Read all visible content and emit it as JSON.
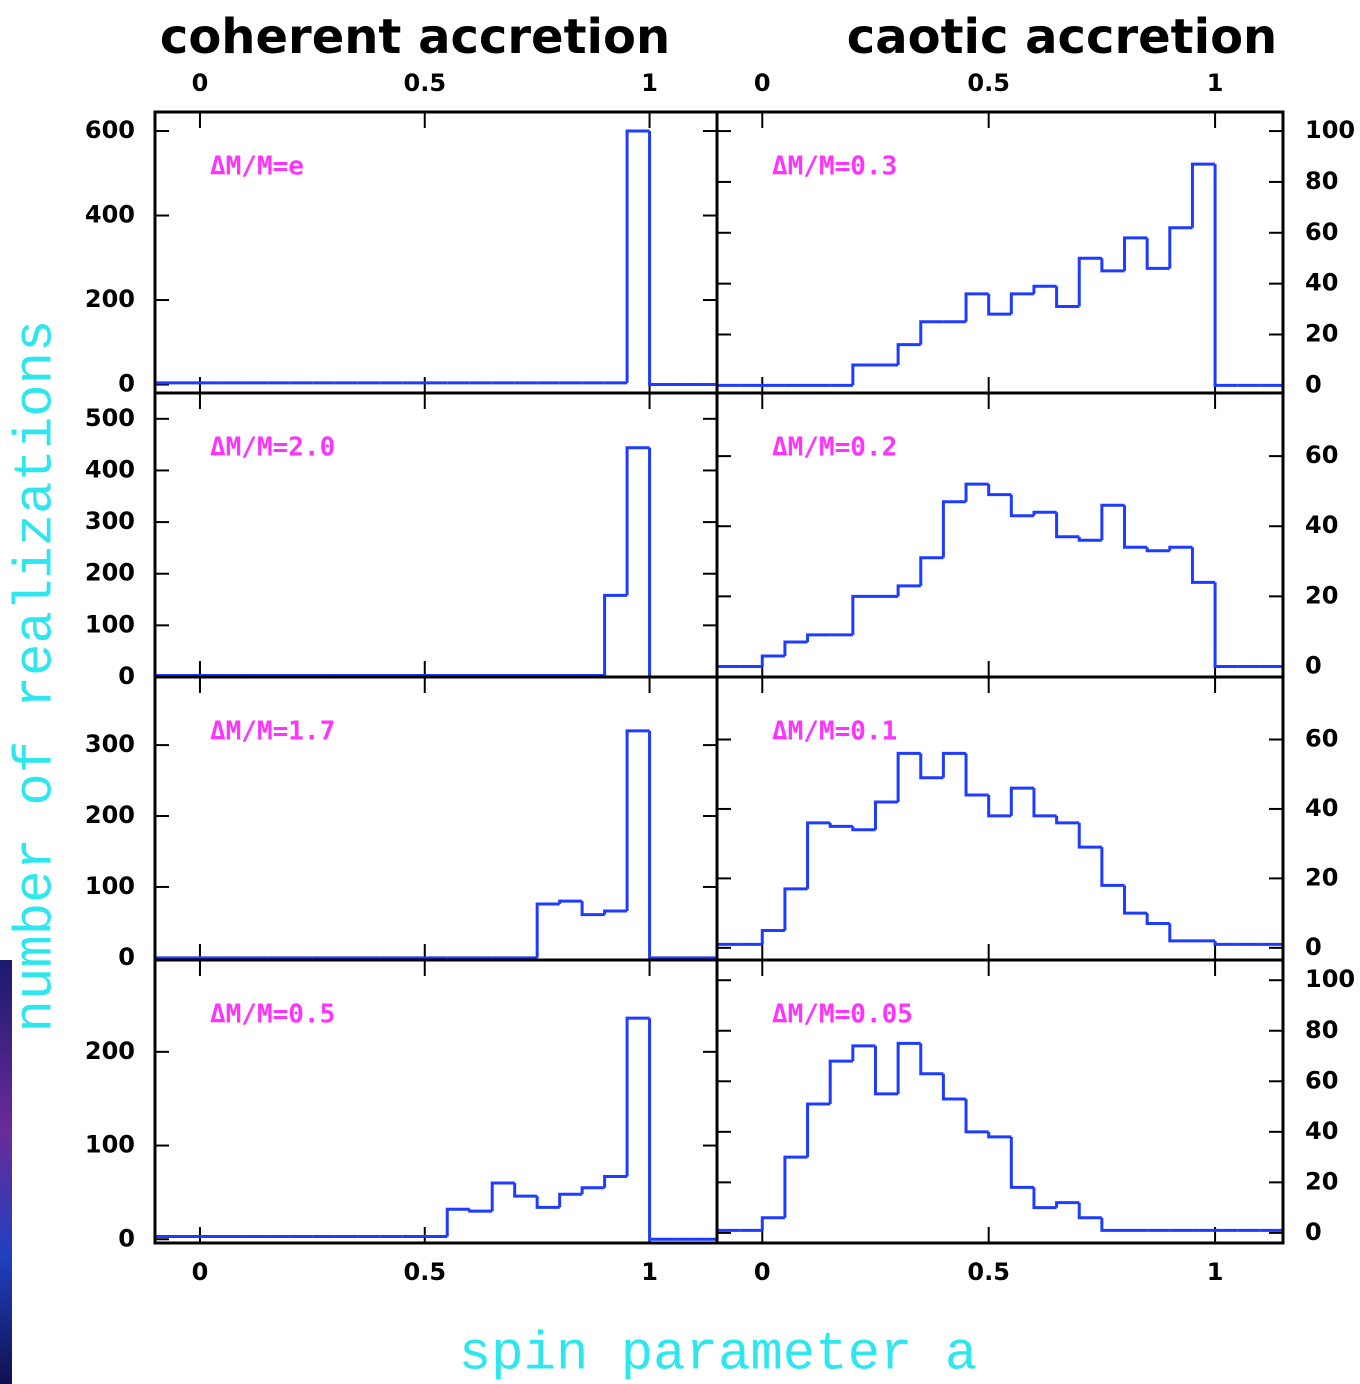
{
  "figure": {
    "column_titles": [
      "coherent accretion",
      "caotic accretion"
    ],
    "x_label": "spin parameter a",
    "y_label": "number of realizations"
  },
  "chart_data": [
    {
      "type": "histogram",
      "annotation": "ΔM/M=e",
      "color": "#1e3cff",
      "y_axis_side": "left",
      "xtick_labels": "top",
      "bins": [
        -0.1,
        -0.05,
        0,
        0.05,
        0.1,
        0.15,
        0.2,
        0.25,
        0.3,
        0.35,
        0.4,
        0.45,
        0.5,
        0.55,
        0.6,
        0.65,
        0.7,
        0.75,
        0.8,
        0.85,
        0.9,
        0.95,
        1,
        1.05,
        1.1,
        1.15
      ],
      "values": [
        4,
        4,
        4,
        4,
        4,
        4,
        4,
        4,
        4,
        4,
        4,
        4,
        4,
        4,
        4,
        4,
        4,
        4,
        4,
        4,
        4,
        600,
        0,
        0,
        0
      ],
      "xlim": [
        -0.1,
        1.15
      ],
      "xticks": [
        0,
        0.5,
        1
      ],
      "ylim": [
        -20,
        645
      ],
      "yticks": [
        0,
        200,
        400,
        600
      ]
    },
    {
      "type": "histogram",
      "annotation": "ΔM/M=0.3",
      "color": "#1e3cff",
      "y_axis_side": "right",
      "xtick_labels": "top",
      "bins": [
        -0.1,
        -0.05,
        0,
        0.05,
        0.1,
        0.15,
        0.2,
        0.25,
        0.3,
        0.35,
        0.4,
        0.45,
        0.5,
        0.55,
        0.6,
        0.65,
        0.7,
        0.75,
        0.8,
        0.85,
        0.9,
        0.95,
        1,
        1.05,
        1.1,
        1.15
      ],
      "values": [
        0,
        0,
        0,
        0,
        0,
        0,
        8,
        8,
        16,
        25,
        25,
        36,
        28,
        36,
        39,
        31,
        50,
        45,
        58,
        46,
        62,
        87,
        0,
        0,
        0
      ],
      "xlim": [
        -0.1,
        1.15
      ],
      "xticks": [
        0,
        0.5,
        1
      ],
      "ylim": [
        -3,
        107.5
      ],
      "yticks": [
        0,
        20,
        40,
        60,
        80,
        100
      ]
    },
    {
      "type": "histogram",
      "annotation": "ΔM/M=2.0",
      "color": "#1e3cff",
      "y_axis_side": "left",
      "xtick_labels": "none",
      "bins": [
        -0.1,
        -0.05,
        0,
        0.05,
        0.1,
        0.15,
        0.2,
        0.25,
        0.3,
        0.35,
        0.4,
        0.45,
        0.5,
        0.55,
        0.6,
        0.65,
        0.7,
        0.75,
        0.8,
        0.85,
        0.9,
        0.95,
        1,
        1.05,
        1.1,
        1.15
      ],
      "values": [
        3,
        3,
        3,
        3,
        3,
        3,
        3,
        3,
        3,
        3,
        3,
        3,
        3,
        3,
        3,
        3,
        3,
        3,
        3,
        3,
        158,
        444,
        0,
        0,
        0
      ],
      "xlim": [
        -0.1,
        1.15
      ],
      "xticks": [
        0,
        0.5,
        1
      ],
      "ylim": [
        0,
        550
      ],
      "yticks": [
        0,
        100,
        200,
        300,
        400,
        500
      ]
    },
    {
      "type": "histogram",
      "annotation": "ΔM/M=0.2",
      "color": "#1e3cff",
      "y_axis_side": "right",
      "xtick_labels": "none",
      "bins": [
        -0.1,
        -0.05,
        0,
        0.05,
        0.1,
        0.15,
        0.2,
        0.25,
        0.3,
        0.35,
        0.4,
        0.45,
        0.5,
        0.55,
        0.6,
        0.65,
        0.7,
        0.75,
        0.8,
        0.85,
        0.9,
        0.95,
        1,
        1.05,
        1.1,
        1.15
      ],
      "values": [
        0,
        0,
        3,
        7,
        9,
        9,
        20,
        20,
        23,
        31,
        47,
        52,
        49,
        43,
        44,
        37,
        36,
        46,
        34,
        33,
        34,
        24,
        0,
        0,
        0
      ],
      "xlim": [
        -0.1,
        1.15
      ],
      "xticks": [
        0,
        0.5,
        1
      ],
      "ylim": [
        -3,
        78
      ],
      "yticks": [
        0,
        20,
        40,
        60
      ]
    },
    {
      "type": "histogram",
      "annotation": "ΔM/M=1.7",
      "color": "#1e3cff",
      "y_axis_side": "left",
      "xtick_labels": "none",
      "bins": [
        -0.1,
        -0.05,
        0,
        0.05,
        0.1,
        0.15,
        0.2,
        0.25,
        0.3,
        0.35,
        0.4,
        0.45,
        0.5,
        0.55,
        0.6,
        0.65,
        0.7,
        0.75,
        0.8,
        0.85,
        0.9,
        0.95,
        1,
        1.05,
        1.1,
        1.15
      ],
      "values": [
        0,
        0,
        0,
        0,
        0,
        0,
        0,
        0,
        0,
        0,
        0,
        0,
        0,
        0,
        0,
        0,
        0,
        76,
        80,
        61,
        66,
        320,
        0,
        0,
        0
      ],
      "xlim": [
        -0.1,
        1.15
      ],
      "xticks": [
        0,
        0.5,
        1
      ],
      "ylim": [
        -3,
        396
      ],
      "yticks": [
        0,
        100,
        200,
        300
      ]
    },
    {
      "type": "histogram",
      "annotation": "ΔM/M=0.1",
      "color": "#1e3cff",
      "y_axis_side": "right",
      "xtick_labels": "none",
      "bins": [
        -0.1,
        -0.05,
        0,
        0.05,
        0.1,
        0.15,
        0.2,
        0.25,
        0.3,
        0.35,
        0.4,
        0.45,
        0.5,
        0.55,
        0.6,
        0.65,
        0.7,
        0.75,
        0.8,
        0.85,
        0.9,
        0.95,
        1,
        1.05,
        1.1,
        1.15
      ],
      "values": [
        1,
        1,
        5,
        17,
        36,
        35,
        34,
        42,
        56,
        49,
        56,
        44,
        38,
        46,
        38,
        36,
        29,
        18,
        10,
        7,
        2,
        2,
        1,
        1,
        1
      ],
      "xlim": [
        -0.1,
        1.15
      ],
      "xticks": [
        0,
        0.5,
        1
      ],
      "ylim": [
        -3.5,
        78
      ],
      "yticks": [
        0,
        20,
        40,
        60
      ]
    },
    {
      "type": "histogram",
      "annotation": "ΔM/M=0.5",
      "color": "#1e3cff",
      "y_axis_side": "left",
      "xtick_labels": "bottom",
      "bins": [
        -0.1,
        -0.05,
        0,
        0.05,
        0.1,
        0.15,
        0.2,
        0.25,
        0.3,
        0.35,
        0.4,
        0.45,
        0.5,
        0.55,
        0.6,
        0.65,
        0.7,
        0.75,
        0.8,
        0.85,
        0.9,
        0.95,
        1,
        1.05,
        1.1,
        1.15
      ],
      "values": [
        3,
        3,
        3,
        3,
        3,
        3,
        3,
        3,
        3,
        3,
        3,
        3,
        3,
        32,
        30,
        60,
        46,
        34,
        48,
        55,
        67,
        236,
        0,
        0,
        0
      ],
      "xlim": [
        -0.1,
        1.15
      ],
      "xticks": [
        0,
        0.5,
        1
      ],
      "ylim": [
        -4,
        298
      ],
      "yticks": [
        0,
        100,
        200
      ]
    },
    {
      "type": "histogram",
      "annotation": "ΔM/M=0.05",
      "color": "#1e3cff",
      "y_axis_side": "right",
      "xtick_labels": "bottom",
      "bins": [
        -0.1,
        -0.05,
        0,
        0.05,
        0.1,
        0.15,
        0.2,
        0.25,
        0.3,
        0.35,
        0.4,
        0.45,
        0.5,
        0.55,
        0.6,
        0.65,
        0.7,
        0.75,
        0.8,
        0.85,
        0.9,
        0.95,
        1,
        1.05,
        1.1,
        1.15
      ],
      "values": [
        1,
        1,
        6,
        30,
        51,
        68,
        74,
        55,
        75,
        63,
        53,
        40,
        38,
        18,
        10,
        12,
        6,
        1,
        1,
        1,
        1,
        1,
        1,
        1,
        1
      ],
      "xlim": [
        -0.1,
        1.15
      ],
      "xticks": [
        0,
        0.5,
        1
      ],
      "ylim": [
        -4,
        108
      ],
      "yticks": [
        0,
        20,
        40,
        60,
        80,
        100
      ]
    }
  ]
}
